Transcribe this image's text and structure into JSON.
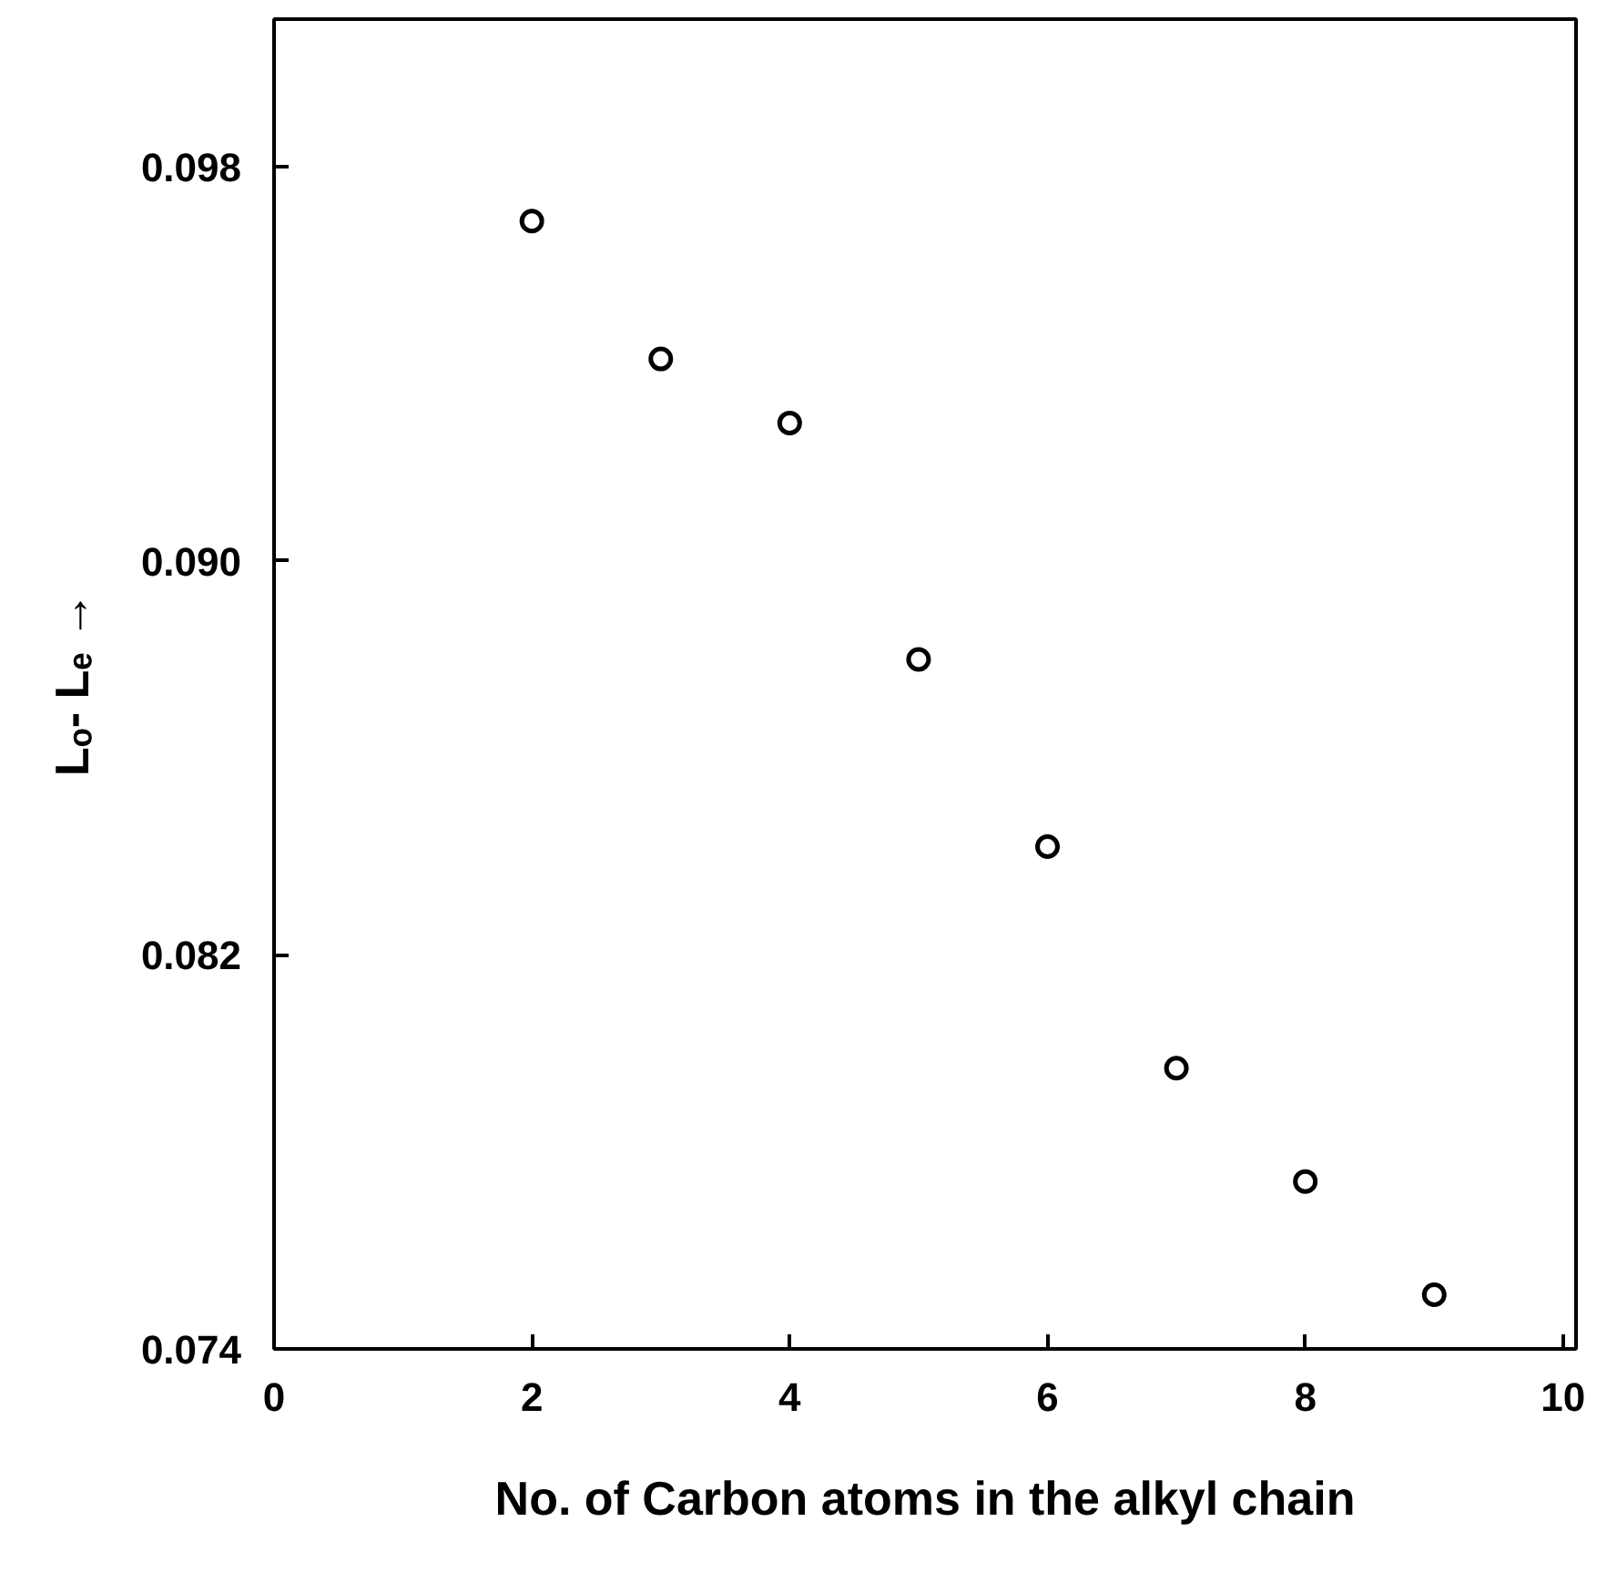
{
  "chart_data": {
    "type": "scatter",
    "xlabel": "No. of Carbon atoms in the alkyl chain",
    "ylabel": "Lₒ- Lₑ →",
    "x": [
      2,
      3,
      4,
      5,
      6,
      7,
      8,
      9
    ],
    "values": [
      0.0969,
      0.0941,
      0.0928,
      0.088,
      0.0842,
      0.0797,
      0.0774,
      0.0751
    ],
    "color": "#000000",
    "marker": "circle",
    "xlim": [
      0,
      10.1
    ],
    "ylim": [
      0.074,
      0.101
    ],
    "xticks": [
      0,
      2,
      4,
      6,
      8,
      10
    ],
    "yticks": [
      0.074,
      0.082,
      {
        "value": 0.09,
        "label": "0.090"
      },
      0.098
    ],
    "grid": false
  }
}
